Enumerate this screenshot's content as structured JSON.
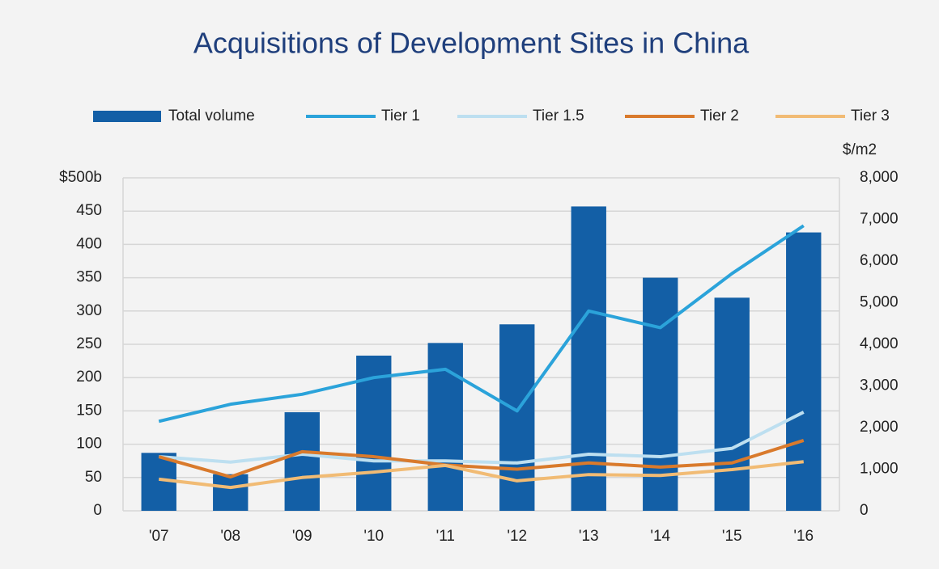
{
  "chart_data": {
    "type": "bar",
    "title": "Acquisitions of Development Sites in China",
    "y2_label": "$/m2",
    "categories": [
      "'07",
      "'08",
      "'09",
      "'10",
      "'11",
      "'12",
      "'13",
      "'14",
      "'15",
      "'16"
    ],
    "series": [
      {
        "name": "Total volume",
        "type": "bar",
        "color": "#135fa6",
        "values": [
          87,
          55,
          148,
          233,
          252,
          280,
          457,
          350,
          320,
          418
        ]
      },
      {
        "name": "Tier 1",
        "type": "line",
        "axis": "y2",
        "color": "#2ba3da",
        "values": [
          2150,
          2560,
          2800,
          3200,
          3400,
          2400,
          4800,
          4400,
          5700,
          6850
        ]
      },
      {
        "name": "Tier 1.5",
        "type": "line",
        "axis": "y2",
        "color": "#bddff0",
        "values": [
          1300,
          1170,
          1360,
          1200,
          1200,
          1150,
          1360,
          1300,
          1500,
          2370
        ]
      },
      {
        "name": "Tier 2",
        "type": "line",
        "axis": "y2",
        "color": "#d97a2c",
        "values": [
          1300,
          815,
          1420,
          1300,
          1100,
          1000,
          1150,
          1050,
          1150,
          1690
        ]
      },
      {
        "name": "Tier 3",
        "type": "line",
        "axis": "y2",
        "color": "#f1bb74",
        "values": [
          760,
          560,
          800,
          930,
          1090,
          720,
          870,
          850,
          990,
          1180
        ]
      }
    ],
    "ylim": [
      0,
      500
    ],
    "yticks": [
      0,
      50,
      100,
      150,
      200,
      250,
      300,
      350,
      400,
      450,
      {
        "value": 500,
        "label": "$500b"
      }
    ],
    "y2lim": [
      0,
      8000
    ],
    "y2ticks": [
      0,
      {
        "value": 1000,
        "label": "1,000"
      },
      {
        "value": 2000,
        "label": "2,000"
      },
      {
        "value": 3000,
        "label": "3,000"
      },
      {
        "value": 4000,
        "label": "4,000"
      },
      {
        "value": 5000,
        "label": "5,000"
      },
      {
        "value": 6000,
        "label": "6,000"
      },
      {
        "value": 7000,
        "label": "7,000"
      },
      {
        "value": 8000,
        "label": "8,000"
      }
    ],
    "grid": true
  }
}
